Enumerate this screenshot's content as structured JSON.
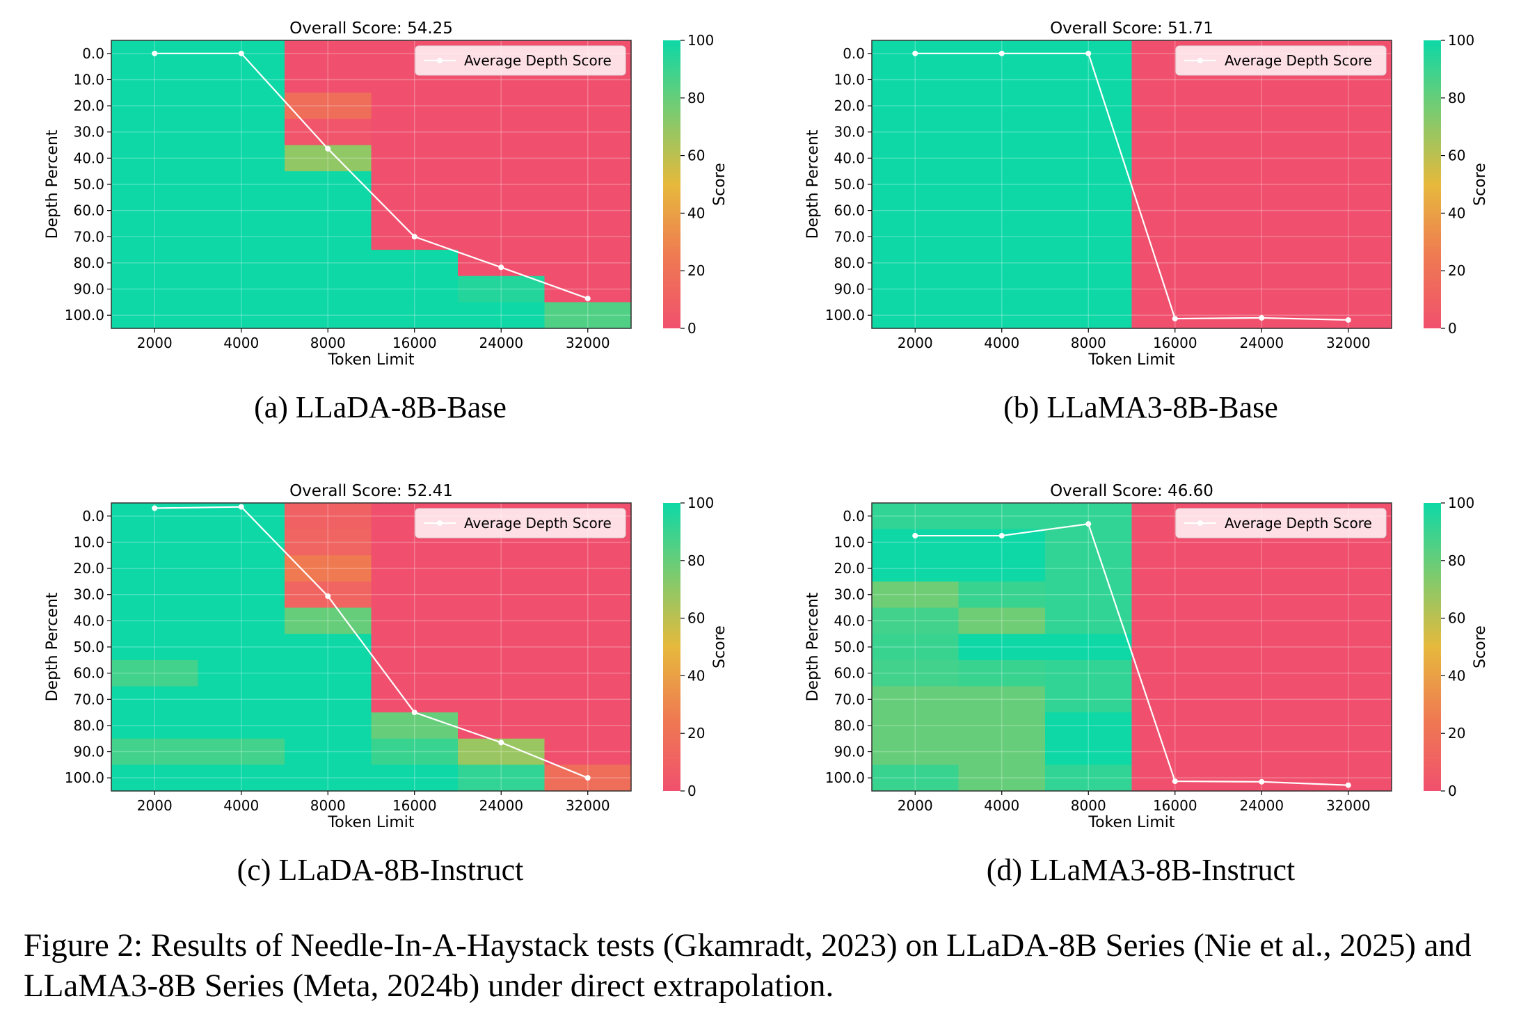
{
  "colors": {
    "high": "#0dd8a6",
    "low": "#f0506e",
    "scale_stops": [
      "#f0506e",
      "#ef7a52",
      "#e6b93c",
      "#7ccb6f",
      "#0dd8a6"
    ],
    "line": "#ffffff",
    "grid": "#ffffff"
  },
  "caption": "Figure 2: Results of Needle-In-A-Haystack tests (Gkamradt, 2023) on LLaDA-8B Series (Nie et al., 2025) and LLaMA3-8B Series (Meta, 2024b) under direct extrapolation.",
  "chart_data": [
    {
      "type": "heatmap",
      "subcaption": "(a) LLaDA-8B-Base",
      "title": "Overall Score: 54.25",
      "xlabel": "Token Limit",
      "ylabel": "Depth Percent",
      "colorbar_label": "Score",
      "colorbar_ticks": [
        "0",
        "20",
        "40",
        "60",
        "80",
        "100"
      ],
      "vmin": 0,
      "vmax": 100,
      "x": [
        "2000",
        "4000",
        "8000",
        "16000",
        "24000",
        "32000"
      ],
      "y": [
        "0.0",
        "10.0",
        "20.0",
        "30.0",
        "40.0",
        "50.0",
        "60.0",
        "70.0",
        "80.0",
        "90.0",
        "100.0"
      ],
      "scores": [
        [
          100,
          100,
          0,
          0,
          0,
          0
        ],
        [
          100,
          100,
          0,
          0,
          0,
          0
        ],
        [
          100,
          100,
          18,
          0,
          0,
          0
        ],
        [
          100,
          100,
          3,
          0,
          0,
          0
        ],
        [
          100,
          100,
          70,
          0,
          0,
          0
        ],
        [
          100,
          100,
          100,
          0,
          0,
          0
        ],
        [
          100,
          100,
          100,
          0,
          0,
          0
        ],
        [
          100,
          100,
          100,
          0,
          0,
          0
        ],
        [
          100,
          100,
          100,
          100,
          0,
          0
        ],
        [
          100,
          100,
          100,
          100,
          95,
          0
        ],
        [
          100,
          100,
          100,
          100,
          100,
          85
        ]
      ],
      "legend": "Average Depth Score",
      "legend_position": "top-right",
      "avg_depth_line": [
        0.0,
        0.0,
        36.4,
        70.0,
        81.7,
        93.6
      ]
    },
    {
      "type": "heatmap",
      "subcaption": "(b) LLaMA3-8B-Base",
      "title": "Overall Score: 51.71",
      "xlabel": "Token Limit",
      "ylabel": "Depth Percent",
      "colorbar_label": "Score",
      "colorbar_ticks": [
        "0",
        "20",
        "40",
        "60",
        "80",
        "100"
      ],
      "vmin": 0,
      "vmax": 100,
      "x": [
        "2000",
        "4000",
        "8000",
        "16000",
        "24000",
        "32000"
      ],
      "y": [
        "0.0",
        "10.0",
        "20.0",
        "30.0",
        "40.0",
        "50.0",
        "60.0",
        "70.0",
        "80.0",
        "90.0",
        "100.0"
      ],
      "scores": [
        [
          100,
          100,
          100,
          0,
          0,
          0
        ],
        [
          100,
          100,
          100,
          0,
          0,
          0
        ],
        [
          100,
          100,
          100,
          0,
          0,
          0
        ],
        [
          100,
          100,
          100,
          0,
          0,
          0
        ],
        [
          100,
          100,
          100,
          0,
          0,
          0
        ],
        [
          100,
          100,
          100,
          0,
          0,
          0
        ],
        [
          100,
          100,
          100,
          0,
          0,
          0
        ],
        [
          100,
          100,
          100,
          0,
          0,
          0
        ],
        [
          100,
          100,
          100,
          0,
          0,
          0
        ],
        [
          100,
          100,
          100,
          0,
          0,
          0
        ],
        [
          100,
          100,
          100,
          0,
          0,
          0
        ]
      ],
      "legend": "Average Depth Score",
      "legend_position": "top-right",
      "avg_depth_line": [
        0.0,
        0.0,
        0.0,
        101.3,
        101.0,
        101.8
      ]
    },
    {
      "type": "heatmap",
      "subcaption": "(c) LLaDA-8B-Instruct",
      "title": "Overall Score: 52.41",
      "xlabel": "Token Limit",
      "ylabel": "Depth Percent",
      "colorbar_label": "Score",
      "colorbar_ticks": [
        "0",
        "20",
        "40",
        "60",
        "80",
        "100"
      ],
      "vmin": 0,
      "vmax": 100,
      "x": [
        "2000",
        "4000",
        "8000",
        "16000",
        "24000",
        "32000"
      ],
      "y": [
        "0.0",
        "10.0",
        "20.0",
        "30.0",
        "40.0",
        "50.0",
        "60.0",
        "70.0",
        "80.0",
        "90.0",
        "100.0"
      ],
      "scores": [
        [
          100,
          100,
          10,
          0,
          0,
          0
        ],
        [
          100,
          100,
          12,
          0,
          0,
          0
        ],
        [
          100,
          100,
          25,
          0,
          0,
          0
        ],
        [
          100,
          100,
          12,
          0,
          0,
          0
        ],
        [
          100,
          100,
          80,
          0,
          0,
          0
        ],
        [
          100,
          100,
          100,
          0,
          0,
          0
        ],
        [
          88,
          100,
          100,
          0,
          0,
          0
        ],
        [
          100,
          100,
          100,
          0,
          0,
          0
        ],
        [
          100,
          100,
          100,
          80,
          0,
          0
        ],
        [
          88,
          88,
          100,
          90,
          68,
          0
        ],
        [
          100,
          100,
          100,
          100,
          92,
          18
        ]
      ],
      "legend": "Average Depth Score",
      "legend_position": "top-right",
      "avg_depth_line": [
        -3.0,
        -3.5,
        30.6,
        75.0,
        86.5,
        100.0
      ]
    },
    {
      "type": "heatmap",
      "subcaption": "(d) LLaMA3-8B-Instruct",
      "title": "Overall Score: 46.60",
      "xlabel": "Token Limit",
      "ylabel": "Depth Percent",
      "colorbar_label": "Score",
      "colorbar_ticks": [
        "0",
        "20",
        "40",
        "60",
        "80",
        "100"
      ],
      "vmin": 0,
      "vmax": 100,
      "x": [
        "2000",
        "4000",
        "8000",
        "16000",
        "24000",
        "32000"
      ],
      "y": [
        "0.0",
        "10.0",
        "20.0",
        "30.0",
        "40.0",
        "50.0",
        "60.0",
        "70.0",
        "80.0",
        "90.0",
        "100.0"
      ],
      "scores": [
        [
          92,
          92,
          92,
          0,
          0,
          0
        ],
        [
          100,
          100,
          92,
          0,
          0,
          0
        ],
        [
          100,
          100,
          92,
          0,
          0,
          0
        ],
        [
          78,
          90,
          92,
          0,
          0,
          0
        ],
        [
          88,
          78,
          92,
          0,
          0,
          0
        ],
        [
          90,
          100,
          100,
          0,
          0,
          0
        ],
        [
          88,
          90,
          92,
          0,
          0,
          0
        ],
        [
          80,
          80,
          92,
          0,
          0,
          0
        ],
        [
          80,
          80,
          100,
          0,
          0,
          0
        ],
        [
          80,
          80,
          100,
          0,
          0,
          0
        ],
        [
          90,
          80,
          92,
          0,
          0,
          0
        ]
      ],
      "legend": "Average Depth Score",
      "legend_position": "top-right",
      "avg_depth_line": [
        7.5,
        7.5,
        3.0,
        101.3,
        101.5,
        102.8
      ]
    }
  ]
}
